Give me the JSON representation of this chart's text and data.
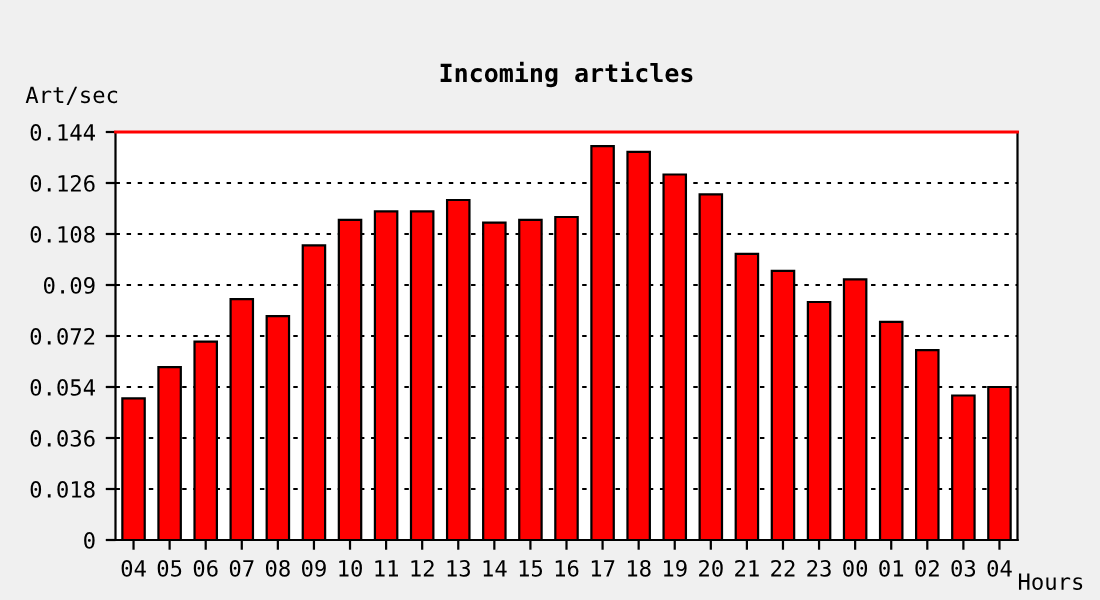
{
  "chart_data": {
    "type": "bar",
    "title": "Incoming articles",
    "ylabel": "Art/sec",
    "xlabel": "Hours",
    "categories": [
      "04",
      "05",
      "06",
      "07",
      "08",
      "09",
      "10",
      "11",
      "12",
      "13",
      "14",
      "15",
      "16",
      "17",
      "18",
      "19",
      "20",
      "21",
      "22",
      "23",
      "00",
      "01",
      "02",
      "03",
      "04"
    ],
    "values": [
      0.05,
      0.061,
      0.07,
      0.085,
      0.079,
      0.104,
      0.113,
      0.116,
      0.116,
      0.12,
      0.112,
      0.113,
      0.114,
      0.139,
      0.137,
      0.129,
      0.122,
      0.101,
      0.095,
      0.084,
      0.092,
      0.077,
      0.067,
      0.051,
      0.054
    ],
    "color": "#ff0000",
    "ylim": [
      0,
      0.144
    ],
    "yticks": [
      0,
      0.018,
      0.036,
      0.054,
      0.072,
      0.09,
      0.108,
      0.126,
      0.144
    ],
    "grid": "y",
    "ref_lines": [
      {
        "axis": "y",
        "value": 0.144,
        "color": "#ff0000",
        "line_style": "solid"
      }
    ]
  }
}
